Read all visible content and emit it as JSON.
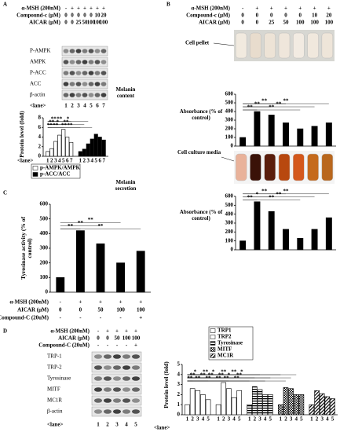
{
  "panels": {
    "A": {
      "label": "A",
      "conditions": [
        {
          "label": "α-MSH (200nM)",
          "cells": [
            "-",
            "+",
            "+",
            "+",
            "+",
            "+",
            "+"
          ]
        },
        {
          "label": "Compound-c (μM)",
          "cells": [
            "0",
            "0",
            "0",
            "0",
            "0",
            "10",
            "20"
          ]
        },
        {
          "label": "AICAR (μM)",
          "cells": [
            "0",
            "0",
            "25",
            "50",
            "100",
            "100",
            "100"
          ]
        }
      ],
      "blots": [
        "P-AMPK",
        "AMPK",
        "P-ACC",
        "ACC",
        "β-actin"
      ],
      "lane_label": "<lane>",
      "lanes": [
        "1",
        "2",
        "3",
        "4",
        "5",
        "6",
        "7"
      ]
    },
    "B": {
      "label": "B",
      "conditions": [
        {
          "label": "α-MSH (200nM)",
          "cells": [
            "-",
            "+",
            "+",
            "+",
            "+",
            "+",
            "+"
          ]
        },
        {
          "label": "Compound-c (μM)",
          "cells": [
            "0",
            "0",
            "0",
            "0",
            "0",
            "10",
            "20"
          ]
        },
        {
          "label": "AICAR (μM)",
          "cells": [
            "0",
            "0",
            "25",
            "50",
            "100",
            "100",
            "100"
          ]
        }
      ],
      "pellet": "Cell pellet",
      "media": "Cell culture media",
      "content": "Melanin content",
      "secretion": "Melanin secretion"
    },
    "C": {
      "label": "C",
      "conditions": [
        {
          "label": "α-MSH (200nM)",
          "cells": [
            "-",
            "+",
            "+",
            "+",
            "+"
          ]
        },
        {
          "label": "AICAR (μM)",
          "cells": [
            "0",
            "0",
            "50",
            "100",
            "100"
          ]
        },
        {
          "label": "Compound-C (20uM)",
          "cells": [
            "-",
            "-",
            "-",
            "-",
            "+"
          ]
        }
      ]
    },
    "D": {
      "label": "D",
      "conditions": [
        {
          "label": "α-MSH (200nM)",
          "cells": [
            "-",
            "+",
            "+",
            "+",
            "+"
          ]
        },
        {
          "label": "AICAR (μM)",
          "cells": [
            "0",
            "0",
            "50",
            "100",
            "100"
          ]
        },
        {
          "label": "Compound-C (20uM)",
          "cells": [
            "-",
            "-",
            "-",
            "-",
            "+"
          ]
        }
      ],
      "blots": [
        "TRP-1",
        "TRP-2",
        "Tyrosinase",
        "MITF",
        "MC1R",
        "β-actin"
      ],
      "lane_label": "<lane>",
      "lanes": [
        "1",
        "2",
        "3",
        "4",
        "5"
      ]
    }
  },
  "chart_data": [
    {
      "type": "bar",
      "ylabel": "Protein level (fold)",
      "x_label": "<lane>",
      "categories": [
        "1",
        "2",
        "3",
        "4",
        "5",
        "6",
        "7"
      ],
      "series": [
        {
          "name": "p-AMPK/AMPK",
          "color": "#ffffff",
          "values": [
            1,
            1.6,
            3.1,
            4.4,
            5.6,
            4.0,
            2.9
          ]
        },
        {
          "name": "p-ACC/ACC",
          "color": "#000000",
          "values": [
            1,
            1.5,
            2.6,
            3.6,
            4.6,
            4.0,
            3.4
          ]
        }
      ],
      "ylim": [
        0,
        8
      ],
      "yticks": [
        0,
        2,
        4,
        6,
        8
      ],
      "annotations": [
        "**",
        "**",
        "**",
        "**",
        "*",
        "**",
        "**",
        "**",
        "*",
        "**"
      ]
    },
    {
      "type": "bar",
      "ylabel": "Absorbance (% of control)",
      "color": "#000000",
      "values": [
        100,
        400,
        360,
        270,
        200,
        230,
        270
      ],
      "ylim": [
        0,
        600
      ],
      "yticks": [
        0,
        100,
        200,
        300,
        400,
        500,
        600
      ],
      "annotations": [
        "**",
        "**",
        "**",
        "**",
        "**",
        "**"
      ]
    },
    {
      "type": "bar",
      "ylabel": "Absorbance (% of control)",
      "color": "#000000",
      "values": [
        100,
        540,
        430,
        230,
        130,
        230,
        360
      ],
      "ylim": [
        0,
        600
      ],
      "yticks": [
        0,
        100,
        200,
        300,
        400,
        500,
        600
      ],
      "annotations": [
        "**",
        "*",
        "**",
        "**",
        "**",
        "**"
      ]
    },
    {
      "type": "bar",
      "ylabel": "Tyrosinase activity (% of control)",
      "color": "#000000",
      "values": [
        100,
        420,
        330,
        200,
        280
      ],
      "ylim": [
        0,
        600
      ],
      "yticks": [
        0,
        100,
        200,
        300,
        400,
        500,
        600
      ],
      "annotations": [
        "**",
        "**",
        "**",
        "**"
      ]
    },
    {
      "type": "bar",
      "ylabel": "Protein level (fold)",
      "x_label": "<lane>",
      "categories": [
        "1",
        "2",
        "3",
        "4",
        "5"
      ],
      "series": [
        {
          "name": "TRP1",
          "color": "#ffffff",
          "pattern": "none",
          "values": [
            1,
            2.6,
            2.4,
            2.0,
            1.5
          ]
        },
        {
          "name": "TRP2",
          "color": "#000000",
          "pattern": "none",
          "values": [
            1,
            3.2,
            2.6,
            1.7,
            2.4
          ]
        },
        {
          "name": "Tyrosinase",
          "color": "#000000",
          "pattern": "hstripe",
          "values": [
            1,
            2.8,
            2.5,
            2.0,
            2.0
          ]
        },
        {
          "name": "MITF",
          "color": "#000000",
          "pattern": "checker",
          "values": [
            1,
            2.7,
            2.6,
            2.0,
            2.0
          ]
        },
        {
          "name": "MC1R",
          "color": "#000000",
          "pattern": "diag",
          "values": [
            1,
            2.4,
            2.1,
            1.8,
            1.6
          ]
        }
      ],
      "ylim": [
        0,
        5
      ],
      "yticks": [
        0,
        1,
        2,
        3,
        4,
        5
      ],
      "annotations": [
        "**",
        "**",
        "*",
        "**",
        "**",
        "**",
        "**",
        "**",
        "*",
        "**",
        "**",
        "**",
        "**",
        "*",
        "**",
        "**",
        "**",
        "*"
      ]
    }
  ]
}
